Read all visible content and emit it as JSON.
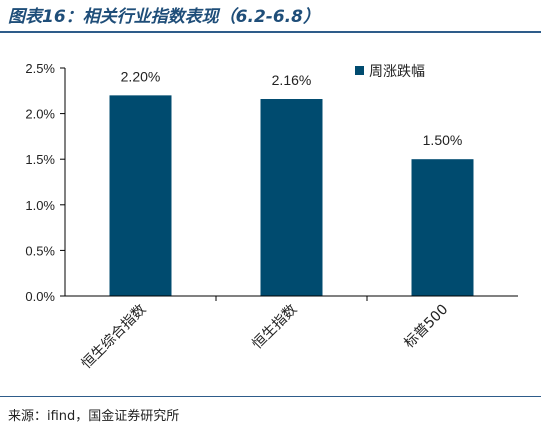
{
  "header": {
    "title": "图表16：相关行业指数表现（6.2-6.8）"
  },
  "footer": {
    "source": "来源：ifind，国金证券研究所"
  },
  "colors": {
    "bar": "#004B6F",
    "accent": "#1f4e79"
  },
  "chart_data": {
    "type": "bar",
    "categories": [
      "恒生综合指数",
      "恒生指数",
      "标普500"
    ],
    "series": [
      {
        "name": "周涨跌幅",
        "values": [
          2.2,
          2.16,
          1.5
        ]
      }
    ],
    "data_labels": [
      "2.20%",
      "2.16%",
      "1.50%"
    ],
    "ylim": [
      0,
      2.5
    ],
    "yticks": [
      0,
      0.5,
      1.0,
      1.5,
      2.0,
      2.5
    ],
    "ytick_labels": [
      "0.0%",
      "0.5%",
      "1.0%",
      "1.5%",
      "2.0%",
      "2.5%"
    ],
    "legend_position": "top-right",
    "grid": false
  }
}
